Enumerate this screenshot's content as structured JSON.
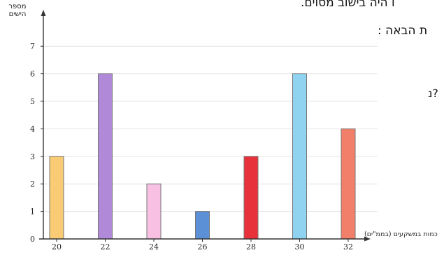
{
  "chart_data": {
    "type": "bar",
    "categories": [
      "20",
      "22",
      "24",
      "26",
      "28",
      "30",
      "32"
    ],
    "values": [
      3,
      6,
      2,
      1,
      3,
      6,
      4
    ],
    "colors": [
      "#f9cb74",
      "#b08ad8",
      "#f8c1e4",
      "#5b8fd6",
      "#e8323b",
      "#8fd3f1",
      "#f27f6a"
    ],
    "ylabel": "מספר הישים",
    "xlabel": "כמות במשקעים (בממ\"ים)",
    "yticks": [
      "0",
      "1",
      "2",
      "3",
      "4",
      "5",
      "6",
      "7"
    ],
    "ylim": [
      0,
      7
    ],
    "grid": true
  },
  "background_text": {
    "line1": "ו היה בישוב מסוים.",
    "line2": "ת הבאה :",
    "line3": "?נ"
  }
}
